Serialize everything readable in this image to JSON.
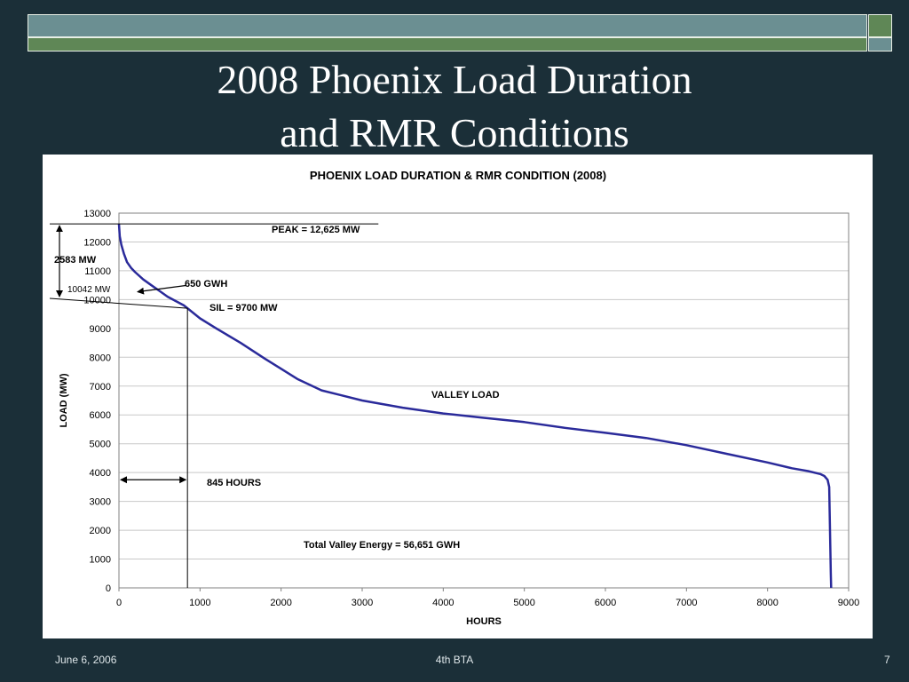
{
  "slide": {
    "title_line1": "2008 Phoenix Load Duration",
    "title_line2": "and RMR Conditions"
  },
  "footer": {
    "date": "June 6, 2006",
    "center": "4th BTA",
    "page": "7"
  },
  "colors": {
    "background": "#1b2f38",
    "curve": "#2a2a9a",
    "bar_teal": "#6b8f92",
    "bar_green": "#5f8756"
  },
  "chart_data": {
    "type": "line",
    "title": "PHOENIX LOAD DURATION & RMR CONDITION (2008)",
    "xlabel": "HOURS",
    "ylabel": "LOAD (MW)",
    "xlim": [
      0,
      9000
    ],
    "ylim": [
      0,
      13000
    ],
    "xticks": [
      0,
      1000,
      2000,
      3000,
      4000,
      5000,
      6000,
      7000,
      8000,
      9000
    ],
    "yticks": [
      0,
      1000,
      2000,
      3000,
      4000,
      5000,
      6000,
      7000,
      8000,
      9000,
      10000,
      11000,
      12000,
      13000
    ],
    "grid": true,
    "series": [
      {
        "x": [
          0,
          10,
          30,
          60,
          100,
          150,
          200,
          300,
          400,
          500,
          600,
          700,
          800,
          845,
          1000,
          1200,
          1500,
          1800,
          2000,
          2200,
          2500,
          3000,
          3500,
          4000,
          4500,
          5000,
          5500,
          6000,
          6500,
          7000,
          7500,
          8000,
          8300,
          8500,
          8650,
          8700,
          8740,
          8760,
          8770,
          8780,
          8784
        ],
        "y": [
          12625,
          12200,
          11900,
          11600,
          11300,
          11100,
          10950,
          10700,
          10500,
          10300,
          10100,
          9950,
          9800,
          9700,
          9350,
          9000,
          8500,
          7950,
          7600,
          7250,
          6850,
          6500,
          6250,
          6050,
          5900,
          5750,
          5550,
          5380,
          5200,
          4950,
          4650,
          4350,
          4150,
          4050,
          3950,
          3880,
          3750,
          3500,
          2000,
          500,
          0
        ]
      }
    ],
    "annotations": {
      "peak": "PEAK = 12,625 MW",
      "gwh": "650 GWH",
      "sil": "SIL = 9700 MW",
      "mw_span": "2583 MW",
      "mw_base": "10042 MW",
      "valley": "VALLEY LOAD",
      "hours": "845 HOURS",
      "energy": "Total Valley Energy = 56,651 GWH"
    },
    "reference": {
      "peak_mw": 12625,
      "base_mw": 10042,
      "sil_mw": 9700,
      "hours": 845,
      "arrow_load_mw": 3750,
      "pointer_from": [
        825,
        10490
      ],
      "pointer_to": [
        230,
        10270
      ]
    }
  }
}
